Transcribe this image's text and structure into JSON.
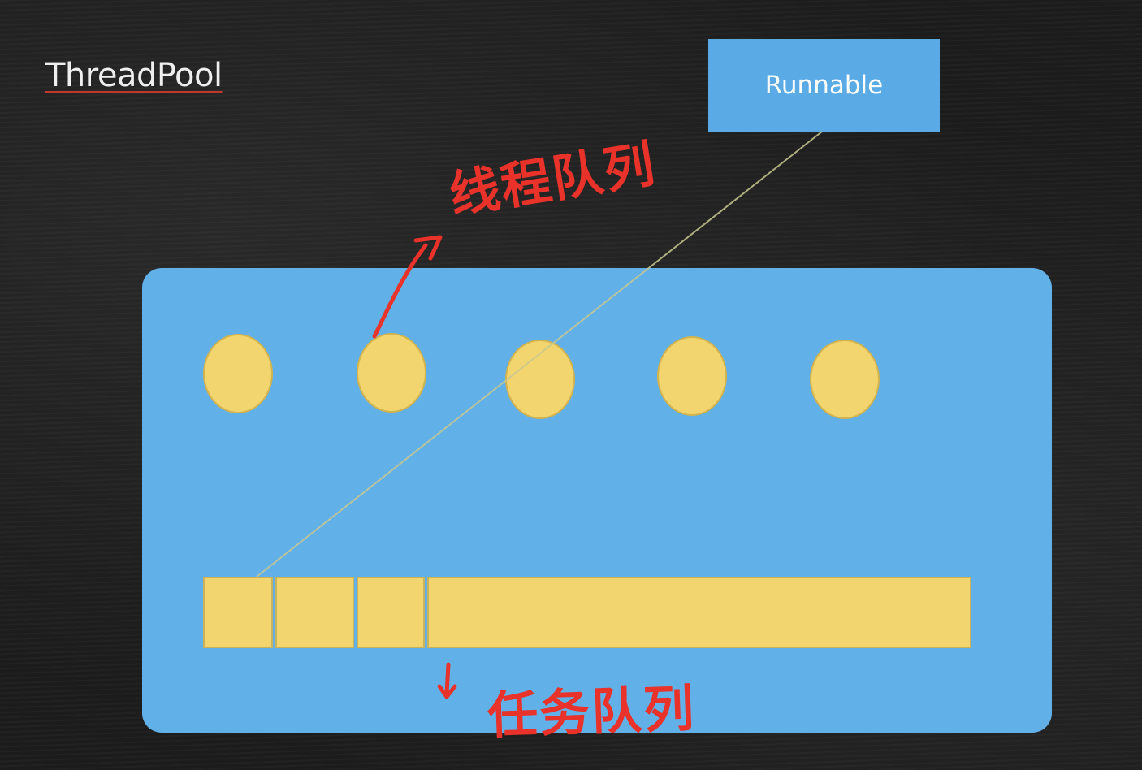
{
  "title": "ThreadPool",
  "runnable": {
    "label": "Runnable"
  },
  "annotations": {
    "thread_queue": "线程队列",
    "task_queue": "任务队列"
  },
  "thread_pool": {
    "thread_count": 5,
    "task_slots_shown": 3
  },
  "colors": {
    "background": "#1c1c1c",
    "pool_blue": "#62b0e8",
    "runnable_blue": "#5aaae6",
    "thread_yellow": "#f2d56e",
    "annotation_red": "#e8322a",
    "connector_line": "#c8c890"
  }
}
